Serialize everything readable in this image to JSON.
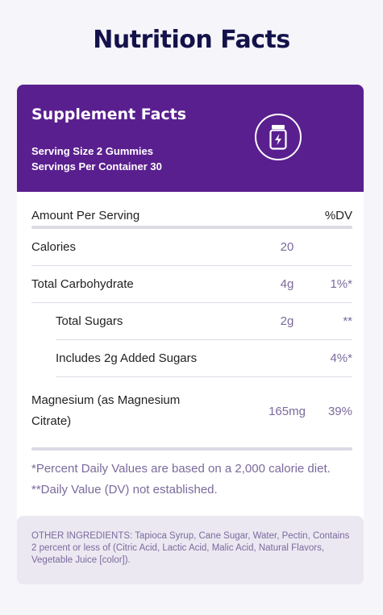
{
  "page": {
    "title": "Nutrition Facts"
  },
  "panel": {
    "title": "Supplement Facts",
    "serving_size": "Serving Size 2 Gummies",
    "servings_per_container": "Servings Per Container 30",
    "icon": "supplement-jar-lightning-icon",
    "accent_color": "#5a1f8f"
  },
  "table": {
    "header": {
      "label": "Amount Per Serving",
      "dv": "%DV"
    },
    "rows": [
      {
        "label": "Calories",
        "amount": "20",
        "dv": ""
      },
      {
        "label": "Total Carbohydrate",
        "amount": "4g",
        "dv": "1%*"
      },
      {
        "label": "Total Sugars",
        "amount": "2g",
        "dv": "**"
      },
      {
        "label": "Includes 2g Added Sugars",
        "amount": "",
        "dv": "4%*"
      },
      {
        "label": "Magnesium (as Magnesium Citrate)",
        "amount": "165mg",
        "dv": "39%"
      }
    ]
  },
  "footnotes": {
    "percent_dv": "*Percent Daily Values are based on a 2,000 calorie diet.",
    "dv_not_established": "**Daily Value (DV) not established."
  },
  "ingredients": {
    "text": "OTHER INGREDIENTS: Tapioca Syrup, Cane Sugar, Water, Pectin, Contains 2 percent or less of (Citric Acid, Lactic Acid, Malic Acid, Natural Flavors, Vegetable Juice [color])."
  }
}
